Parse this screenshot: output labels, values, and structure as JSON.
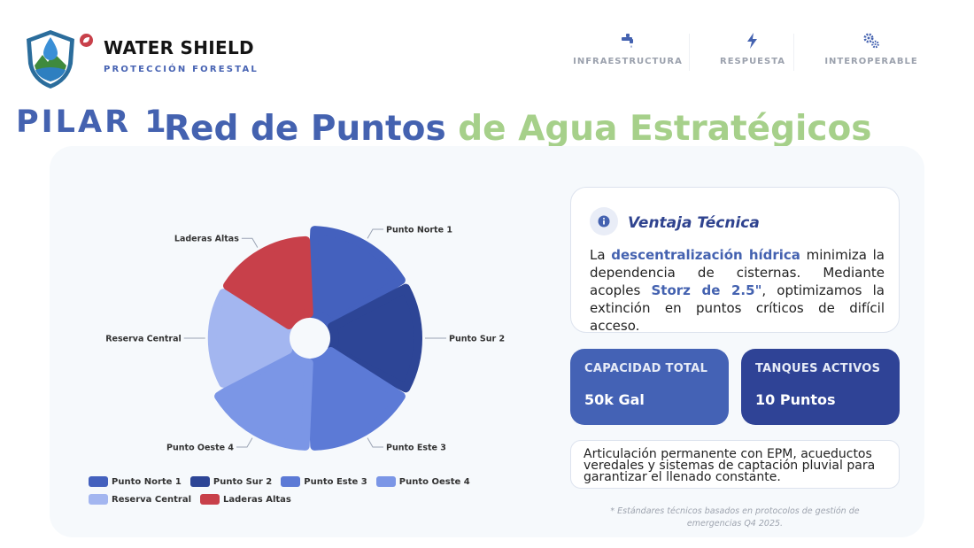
{
  "brand": {
    "title": "WATER SHIELD",
    "subtitle": "PROTECCIÓN FORESTAL",
    "logo_icon": "shield-water-drop-icon",
    "badge_icon": "leaf-icon"
  },
  "nav": [
    {
      "label": "INFRAESTRUCTURA",
      "icon": "faucet-icon"
    },
    {
      "label": "RESPUESTA",
      "icon": "bolt-icon"
    },
    {
      "label": "INTEROPERABLE",
      "icon": "gears-icon"
    }
  ],
  "heading": {
    "pilar": "PILAR 1",
    "title_part1": "Red de Puntos",
    "title_part2": "de Agua Estratégicos"
  },
  "chart_data": {
    "type": "pie",
    "variant": "polar-area",
    "categories": [
      "Punto Norte 1",
      "Punto Sur 2",
      "Punto Este 3",
      "Punto Oeste 4",
      "Reserva Central",
      "Laderas Altas"
    ],
    "values": [
      4,
      4,
      4,
      4,
      3.5,
      3.5
    ],
    "colors": [
      "#4461be",
      "#2d4596",
      "#5c7ad6",
      "#7b96e6",
      "#a3b6f0",
      "#c8404a"
    ],
    "legend_position": "bottom"
  },
  "ventaja": {
    "title": "Ventaja Técnica",
    "icon": "info-icon",
    "text_pre": "La ",
    "text_bold1": "descentralización hídrica",
    "text_mid": " minimiza la dependencia de cisternas. Mediante acoples ",
    "text_bold2": "Storz de 2.5\"",
    "text_post": ", optimizamos la extinción en puntos críticos de difícil acceso."
  },
  "stats": [
    {
      "label": "CAPACIDAD TOTAL",
      "value": "50k Gal",
      "color": "#4462b5"
    },
    {
      "label": "TANQUES ACTIVOS",
      "value": "10 Puntos",
      "color": "#2f4396"
    }
  ],
  "articulacion": "Articulación permanente con EPM, acueductos veredales y sistemas de captación pluvial para garantizar el llenado constante.",
  "footnote": "* Estándares técnicos basados en protocolos de gestión de emergencias Q4 2025."
}
